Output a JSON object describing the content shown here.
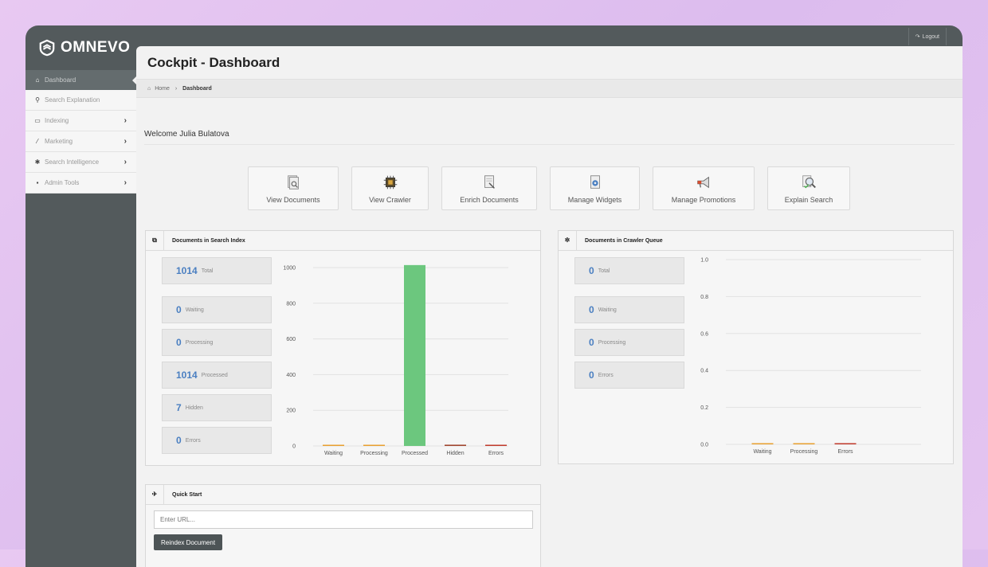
{
  "brand": {
    "name": "OMNEVO"
  },
  "topbar": {
    "logout_label": "Logout"
  },
  "sidebar": {
    "items": [
      {
        "label": "Dashboard",
        "icon": "home-icon",
        "active": true
      },
      {
        "label": "Search Explanation",
        "icon": "search-icon"
      },
      {
        "label": "Indexing",
        "icon": "inbox-icon"
      },
      {
        "label": "Marketing",
        "icon": "magic-wand-icon"
      },
      {
        "label": "Search Intelligence",
        "icon": "gear-icon"
      },
      {
        "label": "Admin Tools",
        "icon": "lock-icon"
      }
    ]
  },
  "page": {
    "title": "Cockpit - Dashboard"
  },
  "breadcrumb": {
    "home": "Home",
    "current": "Dashboard"
  },
  "welcome": "Welcome Julia Bulatova",
  "quick_buttons": [
    {
      "label": "View Documents",
      "icon": "documents-search-icon"
    },
    {
      "label": "View Crawler",
      "icon": "chip-icon"
    },
    {
      "label": "Enrich Documents",
      "icon": "document-wand-icon"
    },
    {
      "label": "Manage Widgets",
      "icon": "gear-document-icon"
    },
    {
      "label": "Manage Promotions",
      "icon": "megaphone-icon"
    },
    {
      "label": "Explain Search",
      "icon": "magnifier-icon"
    }
  ],
  "search_index": {
    "title": "Documents in Search Index",
    "stats": [
      {
        "value": "1014",
        "label": "Total"
      },
      {
        "value": "0",
        "label": "Waiting"
      },
      {
        "value": "0",
        "label": "Processing"
      },
      {
        "value": "1014",
        "label": "Processed"
      },
      {
        "value": "7",
        "label": "Hidden"
      },
      {
        "value": "0",
        "label": "Errors"
      }
    ]
  },
  "crawler_queue": {
    "title": "Documents in Crawler Queue",
    "stats": [
      {
        "value": "0",
        "label": "Total"
      },
      {
        "value": "0",
        "label": "Waiting"
      },
      {
        "value": "0",
        "label": "Processing"
      },
      {
        "value": "0",
        "label": "Errors"
      }
    ]
  },
  "quick_start": {
    "title": "Quick Start",
    "url_placeholder": "Enter URL...",
    "reindex_label": "Reindex Document"
  },
  "chart_data": [
    {
      "type": "bar",
      "categories": [
        "Waiting",
        "Processing",
        "Processed",
        "Hidden",
        "Errors"
      ],
      "values": [
        0,
        0,
        1014,
        7,
        0
      ],
      "colors": [
        "#e8a030",
        "#e8a030",
        "#6cc77e",
        "#a0452e",
        "#c0392b"
      ],
      "ylim": [
        0,
        1000
      ],
      "yticks": [
        "0",
        "200",
        "400",
        "600",
        "800",
        "1000"
      ],
      "grid": true
    },
    {
      "type": "bar",
      "categories": [
        "Waiting",
        "Processing",
        "Errors"
      ],
      "values": [
        0,
        0,
        0
      ],
      "colors": [
        "#e8a030",
        "#e8a030",
        "#c0392b"
      ],
      "ylim": [
        0,
        1.0
      ],
      "yticks": [
        "0.0",
        "0.2",
        "0.4",
        "0.6",
        "0.8",
        "1.0"
      ],
      "grid": true
    }
  ]
}
